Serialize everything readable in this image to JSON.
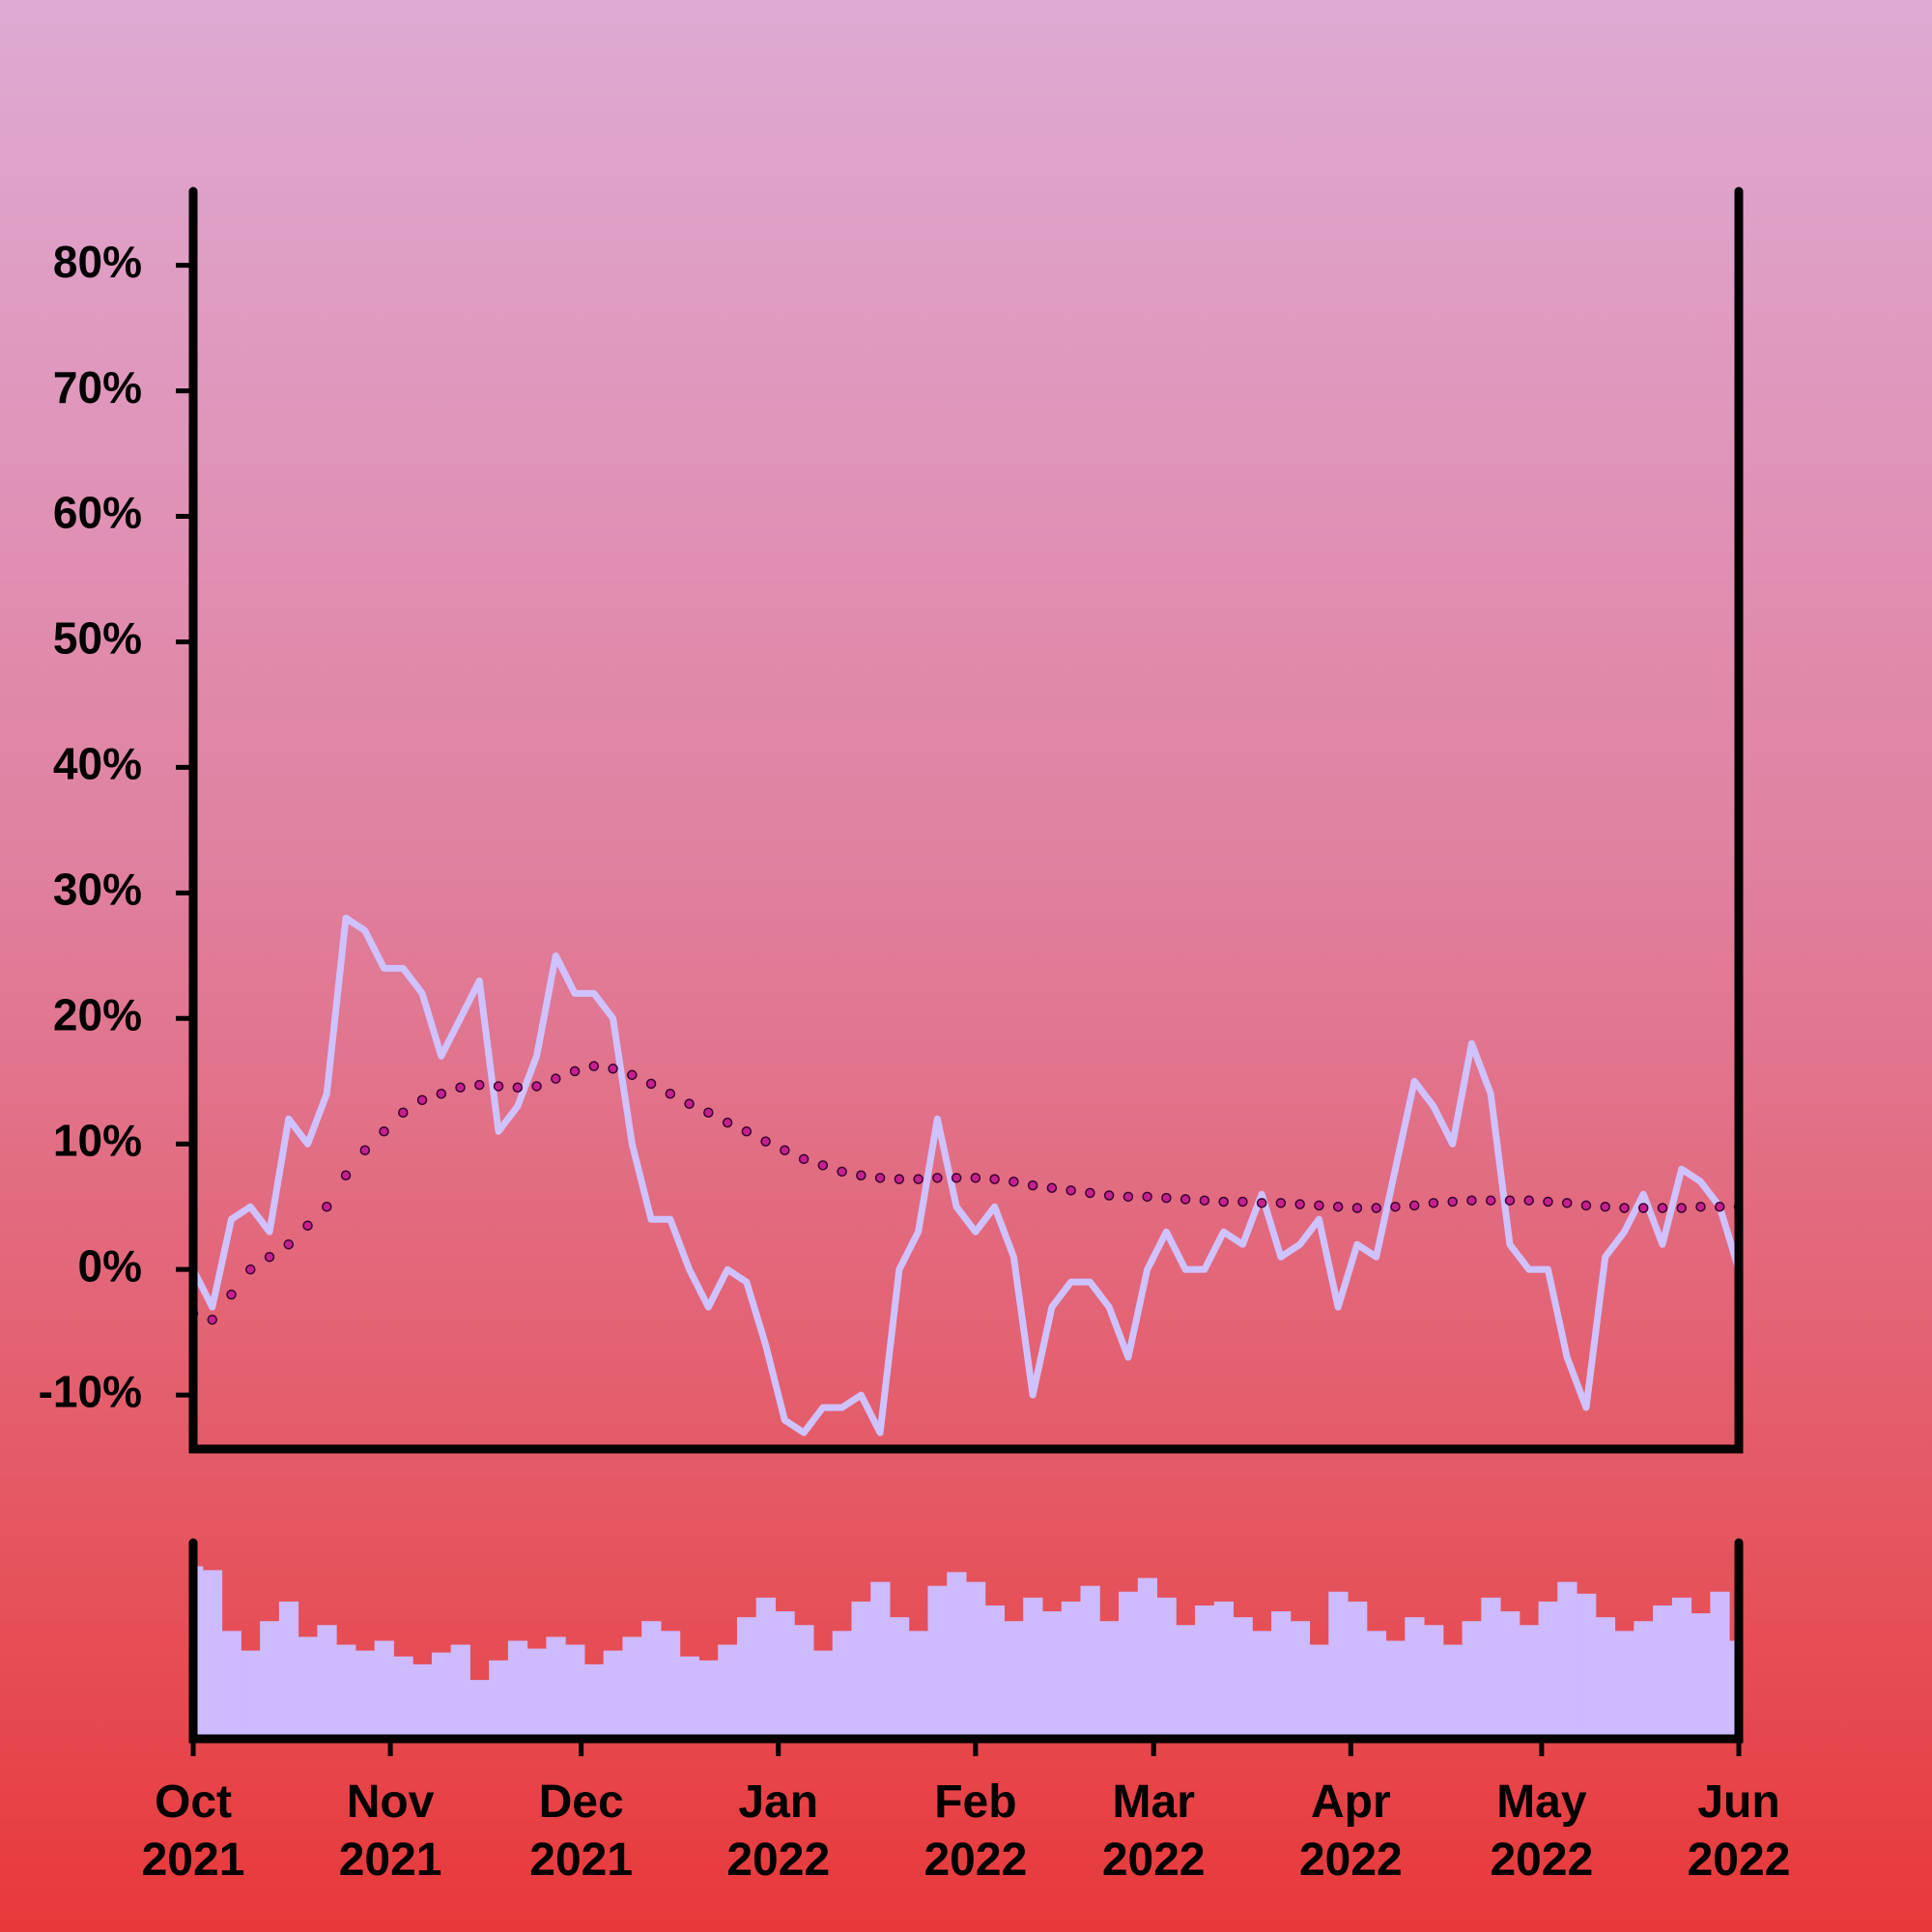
{
  "chart_data": {
    "type": "line",
    "x": [
      0,
      3,
      6,
      9,
      12,
      15,
      18,
      21,
      24,
      27,
      30,
      33,
      36,
      39,
      42,
      45,
      48,
      51,
      54,
      57,
      60,
      63,
      66,
      69,
      72,
      75,
      78,
      81,
      84,
      87,
      90,
      93,
      96,
      99,
      102,
      105,
      108,
      111,
      114,
      117,
      120,
      123,
      126,
      129,
      132,
      135,
      138,
      141,
      144,
      147,
      150,
      153,
      156,
      159,
      162,
      165,
      168,
      171,
      174,
      177,
      180,
      183,
      186,
      189,
      192,
      195,
      198,
      201,
      204,
      207,
      210,
      213,
      216,
      219,
      222,
      225,
      228,
      231,
      234,
      237,
      240,
      243
    ],
    "xlim": [
      0,
      243
    ],
    "xticks": [
      {
        "value": 0,
        "label": "Oct\n2021"
      },
      {
        "value": 31,
        "label": "Nov\n2021"
      },
      {
        "value": 61,
        "label": "Dec\n2021"
      },
      {
        "value": 92,
        "label": "Jan\n2022"
      },
      {
        "value": 123,
        "label": "Feb\n2022"
      },
      {
        "value": 151,
        "label": "Mar\n2022"
      },
      {
        "value": 182,
        "label": "Apr\n2022"
      },
      {
        "value": 212,
        "label": "May\n2022"
      },
      {
        "value": 243,
        "label": "Jun\n2022"
      }
    ],
    "ylim": [
      -14.3,
      85.9
    ],
    "yticks": [
      {
        "value": -10,
        "label": "-10%"
      },
      {
        "value": 0,
        "label": "0%"
      },
      {
        "value": 10,
        "label": "10%"
      },
      {
        "value": 20,
        "label": "20%"
      },
      {
        "value": 30,
        "label": "30%"
      },
      {
        "value": 40,
        "label": "40%"
      },
      {
        "value": 50,
        "label": "50%"
      },
      {
        "value": 60,
        "label": "60%"
      },
      {
        "value": 70,
        "label": "70%"
      },
      {
        "value": 80,
        "label": "80%"
      }
    ],
    "series": [
      {
        "color": "#cfc2ff",
        "style": "line",
        "values": [
          0,
          -3,
          4,
          5,
          3,
          12,
          10,
          14,
          28,
          27,
          24,
          24,
          22,
          17,
          20,
          23,
          11,
          13,
          17,
          25,
          22,
          22,
          20,
          10,
          4,
          4,
          0,
          -3,
          0,
          -1,
          -6,
          -12,
          -13,
          -11,
          -11,
          -10,
          -13,
          0,
          3,
          12,
          5,
          3,
          5,
          1,
          -10,
          -3,
          -1,
          -1,
          -3,
          -7,
          0,
          3,
          0,
          0,
          3,
          2,
          6,
          1,
          2,
          4,
          -3,
          2,
          1,
          8,
          15,
          13,
          10,
          18,
          14,
          2,
          0,
          0,
          -7,
          -11,
          1,
          3,
          6,
          2,
          8,
          7,
          5,
          0
        ]
      },
      {
        "color": "#c4218e",
        "style": "dots",
        "values": [
          -3.5,
          -4,
          -2,
          0,
          1,
          2,
          3.5,
          5,
          7.5,
          9.5,
          11,
          12.5,
          13.5,
          14,
          14.5,
          14.7,
          14.6,
          14.5,
          14.6,
          15.2,
          15.8,
          16.2,
          16,
          15.5,
          14.8,
          14,
          13.2,
          12.5,
          11.7,
          11,
          10.2,
          9.5,
          8.8,
          8.3,
          7.8,
          7.5,
          7.3,
          7.2,
          7.2,
          7.3,
          7.3,
          7.3,
          7.2,
          7,
          6.7,
          6.5,
          6.3,
          6.1,
          5.9,
          5.8,
          5.8,
          5.7,
          5.6,
          5.5,
          5.4,
          5.4,
          5.3,
          5.3,
          5.2,
          5.1,
          5,
          4.9,
          4.9,
          5,
          5.1,
          5.3,
          5.4,
          5.5,
          5.5,
          5.5,
          5.5,
          5.4,
          5.3,
          5.1,
          5,
          4.9,
          4.9,
          4.9,
          4.9,
          5,
          5,
          5
        ]
      }
    ],
    "volume": {
      "color": "#cdbaff",
      "ylim": [
        0,
        100
      ],
      "values": [
        88,
        86,
        55,
        45,
        60,
        70,
        52,
        58,
        48,
        45,
        50,
        42,
        38,
        44,
        48,
        30,
        40,
        50,
        46,
        52,
        48,
        38,
        45,
        52,
        60,
        55,
        42,
        40,
        48,
        62,
        72,
        65,
        58,
        45,
        55,
        70,
        80,
        62,
        55,
        78,
        85,
        80,
        68,
        60,
        72,
        65,
        70,
        78,
        60,
        75,
        82,
        72,
        58,
        68,
        70,
        62,
        55,
        65,
        60,
        48,
        75,
        70,
        55,
        50,
        62,
        58,
        48,
        60,
        72,
        65,
        58,
        70,
        80,
        74,
        62,
        55,
        60,
        68,
        72,
        64,
        75,
        50
      ]
    }
  }
}
